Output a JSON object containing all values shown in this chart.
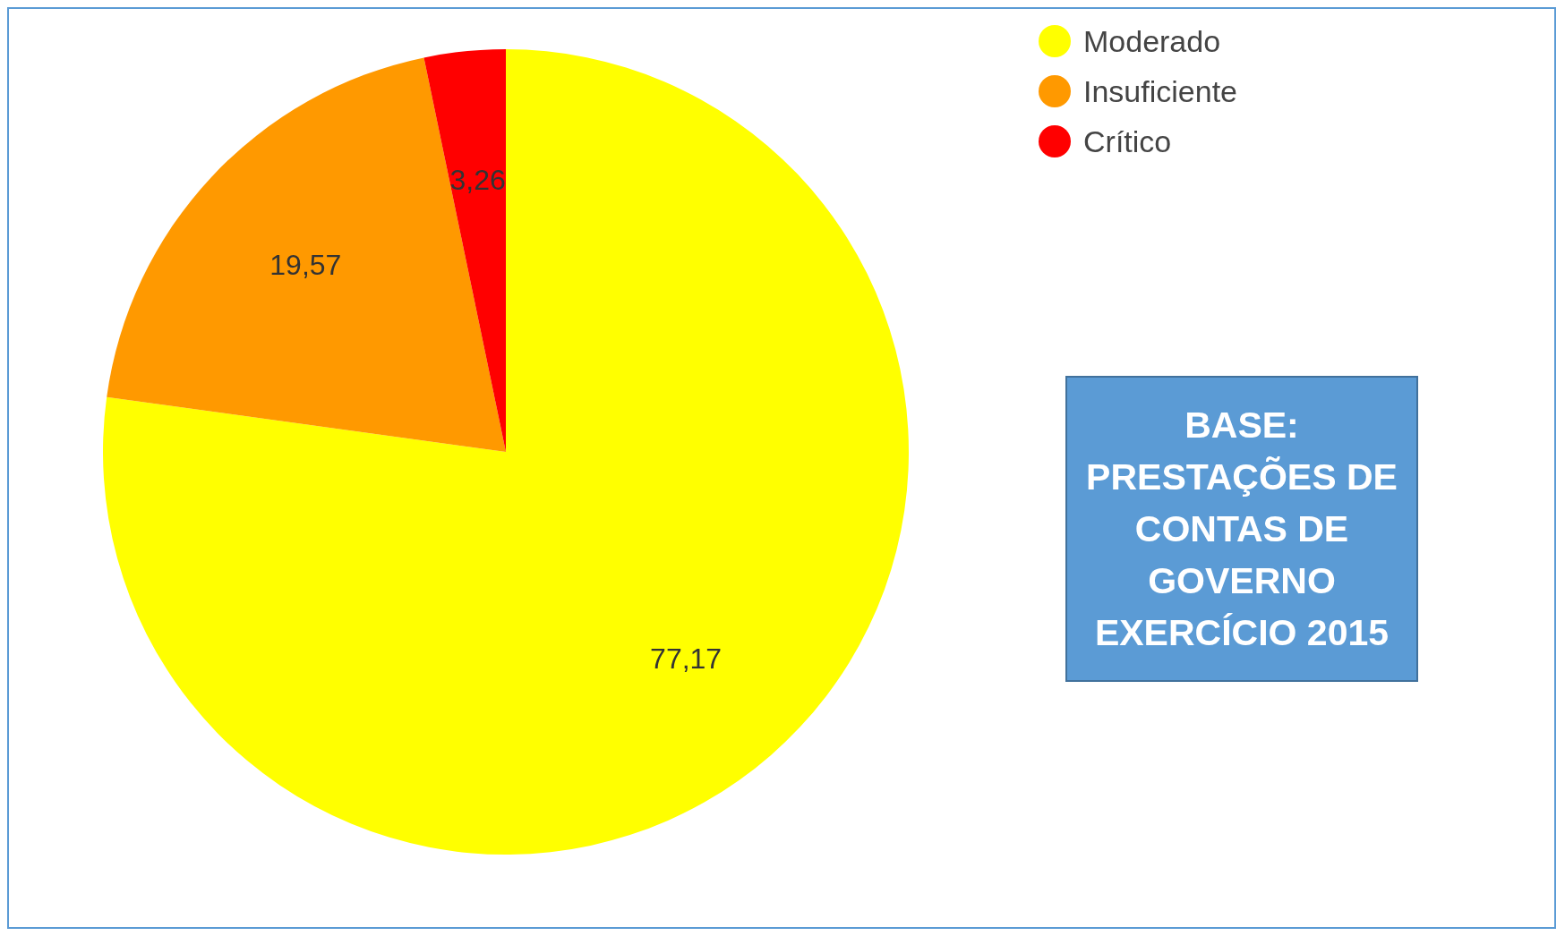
{
  "chart_data": {
    "type": "pie",
    "categories": [
      "Moderado",
      "Insuficiente",
      "Crítico"
    ],
    "values": [
      77.17,
      19.57,
      3.26
    ],
    "value_labels": [
      "77,17",
      "19,57",
      "3,26"
    ],
    "colors": [
      "#ffff00",
      "#ff9900",
      "#ff0000"
    ],
    "legend": "top right",
    "annotations": [
      "BASE: PRESTAÇÕES DE CONTAS DE GOVERNO EXERCÍCIO 2015"
    ]
  }
}
